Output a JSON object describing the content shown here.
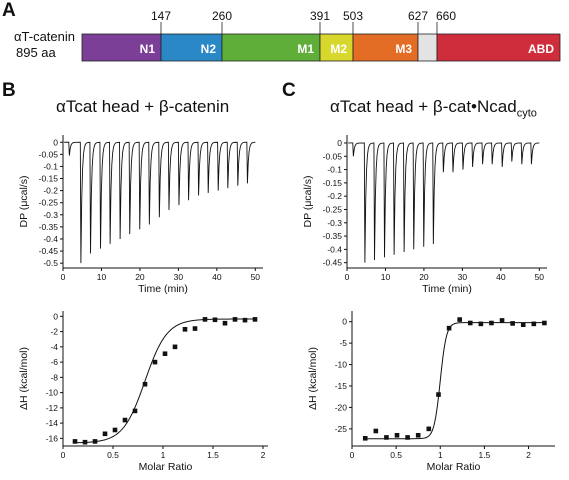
{
  "domain_map": {
    "panel_label": "A",
    "protein_name": "αT-catenin",
    "protein_length": "895 aa",
    "positions": [
      "147",
      "260",
      "391",
      "503",
      "627",
      "660"
    ],
    "domains": [
      {
        "name": "N1",
        "color": "#7b3f98"
      },
      {
        "name": "N2",
        "color": "#2a88c6"
      },
      {
        "name": "M1",
        "color": "#5fae3a"
      },
      {
        "name": "M2",
        "color": "#d8d72d"
      },
      {
        "name": "M3",
        "color": "#e46d25"
      },
      {
        "name": "",
        "color": "#e3e3e3"
      },
      {
        "name": "ABD",
        "color": "#cf2d3c"
      }
    ]
  },
  "panel_b": {
    "label": "B",
    "title_pre": "αTcat head + β-catenin",
    "title_main": "",
    "title_sub": ""
  },
  "panel_c": {
    "label": "C",
    "title_pre": "αTcat head + β-cat•Ncad",
    "title_main": "",
    "title_sub": "cyto"
  },
  "chart_data": [
    {
      "id": "B-thermogram",
      "type": "line",
      "xlabel": "Time (min)",
      "ylabel": "DP (μcal/s)",
      "xlim": [
        0,
        52
      ],
      "ylim": [
        -0.52,
        0.03
      ],
      "xticks": [
        0,
        10,
        20,
        30,
        40,
        50
      ],
      "yticks": [
        0,
        -0.05,
        -0.1,
        -0.15,
        -0.2,
        -0.25,
        -0.3,
        -0.35,
        -0.4,
        -0.45,
        -0.5
      ],
      "ytick_labels": [
        "0",
        "-0.05",
        "-0.1",
        "-0.15",
        "-0.2",
        "-0.25",
        "-0.3",
        "-0.35",
        "-0.4",
        "-0.45",
        "-0.5"
      ],
      "injection_times": [
        1.5,
        4.5,
        7.0,
        9.6,
        12.1,
        14.7,
        17.2,
        19.8,
        22.3,
        24.9,
        27.4,
        30.0,
        32.5,
        35.1,
        37.6,
        40.2,
        42.7,
        45.3,
        47.8
      ],
      "peak_values": [
        -0.055,
        -0.5,
        -0.46,
        -0.44,
        -0.42,
        -0.4,
        -0.38,
        -0.36,
        -0.34,
        -0.31,
        -0.28,
        -0.26,
        -0.24,
        -0.22,
        -0.21,
        -0.2,
        -0.19,
        -0.18,
        -0.17
      ],
      "line_color": "#111111"
    },
    {
      "id": "B-isotherm",
      "type": "scatter",
      "xlabel": "Molar Ratio",
      "ylabel": "ΔH (kcal/mol)",
      "xlim": [
        0,
        2.05
      ],
      "ylim": [
        -17,
        0.7
      ],
      "xticks": [
        0,
        0.5,
        1,
        1.5,
        2
      ],
      "xtick_labels": [
        "0",
        "0.5",
        "1",
        "1.5",
        "2"
      ],
      "yticks": [
        0,
        -2,
        -4,
        -6,
        -8,
        -10,
        -12,
        -14,
        -16
      ],
      "ytick_labels": [
        "0",
        "-2",
        "-4",
        "-6",
        "-8",
        "-10",
        "-12",
        "-14",
        "-16"
      ],
      "x": [
        0.12,
        0.22,
        0.32,
        0.42,
        0.52,
        0.62,
        0.72,
        0.82,
        0.92,
        1.02,
        1.12,
        1.22,
        1.32,
        1.42,
        1.52,
        1.62,
        1.72,
        1.82,
        1.92
      ],
      "y": [
        -16.4,
        -16.5,
        -16.4,
        -15.4,
        -14.9,
        -13.6,
        -12.4,
        -8.9,
        -6.0,
        -4.9,
        -4.0,
        -1.7,
        -1.6,
        -0.4,
        -0.45,
        -0.9,
        -0.4,
        -0.5,
        -0.4
      ],
      "fit": {
        "n": 0.82,
        "dh_top": -0.35,
        "dh_bottom": -16.6,
        "width": 0.11
      },
      "marker_color": "#111111",
      "line_color": "#111111"
    },
    {
      "id": "C-thermogram",
      "type": "line",
      "xlabel": "Time (min)",
      "ylabel": "DP (μcal/s)",
      "xlim": [
        0,
        52
      ],
      "ylim": [
        -0.47,
        0.03
      ],
      "xticks": [
        0,
        10,
        20,
        30,
        40,
        50
      ],
      "yticks": [
        0,
        -0.05,
        -0.1,
        -0.15,
        -0.2,
        -0.25,
        -0.3,
        -0.35,
        -0.4,
        -0.45
      ],
      "ytick_labels": [
        "0",
        "-0.05",
        "-0.1",
        "-0.15",
        "-0.2",
        "-0.25",
        "-0.3",
        "-0.35",
        "-0.4",
        "-0.45"
      ],
      "injection_times": [
        1.5,
        4.5,
        7.0,
        9.6,
        12.1,
        14.7,
        17.2,
        19.8,
        22.3,
        24.9,
        27.4,
        30.0,
        32.5,
        35.1,
        37.6,
        40.2,
        42.7,
        45.3,
        47.8
      ],
      "peak_values": [
        -0.05,
        -0.45,
        -0.44,
        -0.43,
        -0.42,
        -0.41,
        -0.4,
        -0.39,
        -0.38,
        -0.11,
        -0.11,
        -0.1,
        -0.09,
        -0.08,
        -0.08,
        -0.09,
        -0.07,
        -0.08,
        -0.08
      ],
      "line_color": "#111111"
    },
    {
      "id": "C-isotherm",
      "type": "scatter",
      "xlabel": "Molar Ratio",
      "ylabel": "ΔH (kcal/mol)",
      "xlim": [
        0,
        2.3
      ],
      "ylim": [
        -29,
        2.5
      ],
      "xticks": [
        0,
        0.5,
        1,
        1.5,
        2
      ],
      "xtick_labels": [
        "0",
        "0.5",
        "1",
        "1.5",
        "2"
      ],
      "yticks": [
        0,
        -5,
        -10,
        -15,
        -20,
        -25
      ],
      "ytick_labels": [
        "0",
        "-5",
        "-10",
        "-15",
        "-20",
        "-25"
      ],
      "x": [
        0.15,
        0.27,
        0.39,
        0.51,
        0.63,
        0.75,
        0.87,
        0.98,
        1.1,
        1.22,
        1.34,
        1.46,
        1.58,
        1.7,
        1.82,
        1.94,
        2.06,
        2.18
      ],
      "y": [
        -27.2,
        -25.5,
        -27.0,
        -26.5,
        -27.0,
        -26.5,
        -25.0,
        -17.0,
        -1.5,
        0.5,
        -0.3,
        -0.5,
        -0.3,
        0.3,
        -0.4,
        -0.7,
        -0.5,
        -0.3
      ],
      "fit": {
        "n": 1.0,
        "dh_top": -0.2,
        "dh_bottom": -27.3,
        "width": 0.035
      },
      "marker_color": "#111111",
      "line_color": "#111111"
    }
  ]
}
